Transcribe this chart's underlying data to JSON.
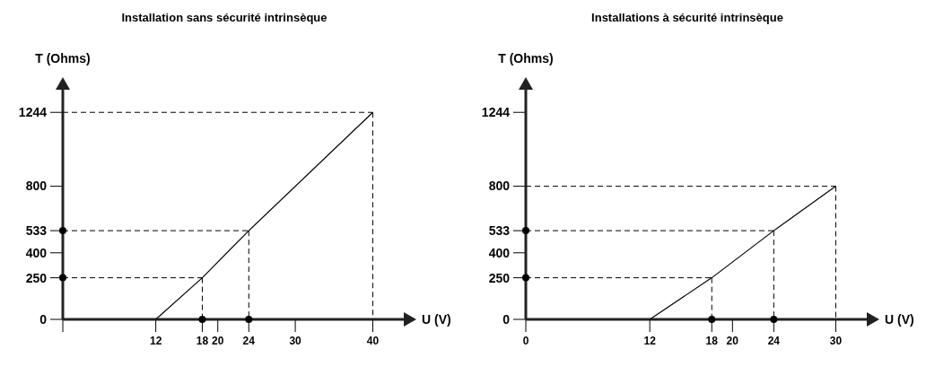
{
  "chart_data": [
    {
      "type": "line",
      "title": "Installation sans sécurité intrinsèque",
      "xlabel": "U (V)",
      "ylabel": "T (Ohms)",
      "line_style": "solid",
      "series": [
        {
          "color": "#000000",
          "x": [
            12,
            18,
            24,
            40
          ],
          "values": [
            0,
            250,
            533,
            1244
          ]
        }
      ],
      "xlim": [
        0,
        44
      ],
      "xticks": [
        {
          "value": 0,
          "label": null
        },
        12,
        18,
        20,
        24,
        30,
        40
      ],
      "ylim": [
        0,
        1380
      ],
      "yticks": [
        0,
        250,
        400,
        533,
        800,
        1244
      ]
    },
    {
      "type": "line",
      "title": "Installations à sécurité intrinsèque",
      "xlabel": "U (V)",
      "ylabel": "T (Ohms)",
      "line_style": "solid",
      "series": [
        {
          "color": "#000000",
          "x": [
            12,
            18,
            24,
            30
          ],
          "values": [
            0,
            250,
            533,
            800
          ]
        }
      ],
      "xlim": [
        0,
        33
      ],
      "xticks": [
        0,
        12,
        18,
        20,
        24,
        30
      ],
      "ylim": [
        0,
        1380
      ],
      "yticks": [
        0,
        250,
        400,
        533,
        800,
        1244
      ]
    }
  ]
}
